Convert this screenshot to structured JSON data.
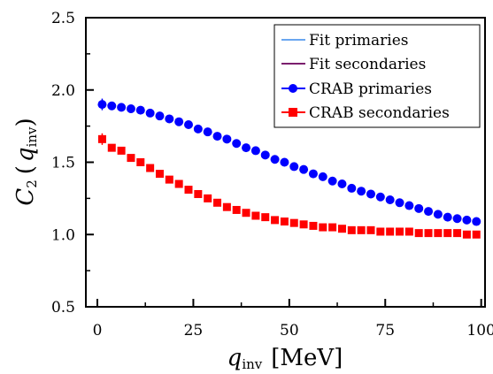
{
  "chart_data": {
    "type": "scatter",
    "xlabel": {
      "var": "q",
      "sub": "inv",
      "unit": "[MeV]"
    },
    "ylabel": {
      "var": "C",
      "sub": "2",
      "arg_open": "(",
      "arg_var": "q",
      "arg_sub": "inv",
      "arg_close": ")"
    },
    "xlim": [
      -3,
      101
    ],
    "ylim": [
      0.5,
      2.5
    ],
    "xticks": [
      0,
      25,
      50,
      75,
      100
    ],
    "xtick_labels": [
      "0",
      "25",
      "50",
      "75",
      "100"
    ],
    "yticks": [
      0.5,
      1.0,
      1.5,
      2.0,
      2.5
    ],
    "ytick_labels": [
      "0.5",
      "1.0",
      "1.5",
      "2.0",
      "2.5"
    ],
    "legend_position": "top-right",
    "legend": [
      {
        "label": "Fit primaries",
        "color": "#6aa6f0",
        "marker": "line"
      },
      {
        "label": "Fit secondaries",
        "color": "#7b1e6e",
        "marker": "line"
      },
      {
        "label": "CRAB primaries",
        "color": "#0000ff",
        "marker": "circle"
      },
      {
        "label": "CRAB secondaries",
        "color": "#ff0000",
        "marker": "square"
      }
    ],
    "series": [
      {
        "name": "CRAB primaries",
        "color": "#0000ff",
        "marker": "circle",
        "x": [
          1.25,
          3.75,
          6.25,
          8.75,
          11.25,
          13.75,
          16.25,
          18.75,
          21.25,
          23.75,
          26.25,
          28.75,
          31.25,
          33.75,
          36.25,
          38.75,
          41.25,
          43.75,
          46.25,
          48.75,
          51.25,
          53.75,
          56.25,
          58.75,
          61.25,
          63.75,
          66.25,
          68.75,
          71.25,
          73.75,
          76.25,
          78.75,
          81.25,
          83.75,
          86.25,
          88.75,
          91.25,
          93.75,
          96.25,
          98.75
        ],
        "y": [
          1.9,
          1.89,
          1.88,
          1.87,
          1.86,
          1.84,
          1.82,
          1.8,
          1.78,
          1.76,
          1.73,
          1.71,
          1.68,
          1.66,
          1.63,
          1.6,
          1.58,
          1.55,
          1.52,
          1.5,
          1.47,
          1.45,
          1.42,
          1.4,
          1.37,
          1.35,
          1.32,
          1.3,
          1.28,
          1.26,
          1.24,
          1.22,
          1.2,
          1.18,
          1.16,
          1.14,
          1.12,
          1.11,
          1.1,
          1.09
        ],
        "err_first": 0.04
      },
      {
        "name": "CRAB secondaries",
        "color": "#ff0000",
        "marker": "square",
        "x": [
          1.25,
          3.75,
          6.25,
          8.75,
          11.25,
          13.75,
          16.25,
          18.75,
          21.25,
          23.75,
          26.25,
          28.75,
          31.25,
          33.75,
          36.25,
          38.75,
          41.25,
          43.75,
          46.25,
          48.75,
          51.25,
          53.75,
          56.25,
          58.75,
          61.25,
          63.75,
          66.25,
          68.75,
          71.25,
          73.75,
          76.25,
          78.75,
          81.25,
          83.75,
          86.25,
          88.75,
          91.25,
          93.75,
          96.25,
          98.75
        ],
        "y": [
          1.66,
          1.6,
          1.58,
          1.53,
          1.5,
          1.46,
          1.42,
          1.38,
          1.35,
          1.31,
          1.28,
          1.25,
          1.22,
          1.19,
          1.17,
          1.15,
          1.13,
          1.12,
          1.1,
          1.09,
          1.08,
          1.07,
          1.06,
          1.05,
          1.05,
          1.04,
          1.03,
          1.03,
          1.03,
          1.02,
          1.02,
          1.02,
          1.02,
          1.01,
          1.01,
          1.01,
          1.01,
          1.01,
          1.0,
          1.0
        ],
        "err_first": 0.04
      }
    ]
  }
}
